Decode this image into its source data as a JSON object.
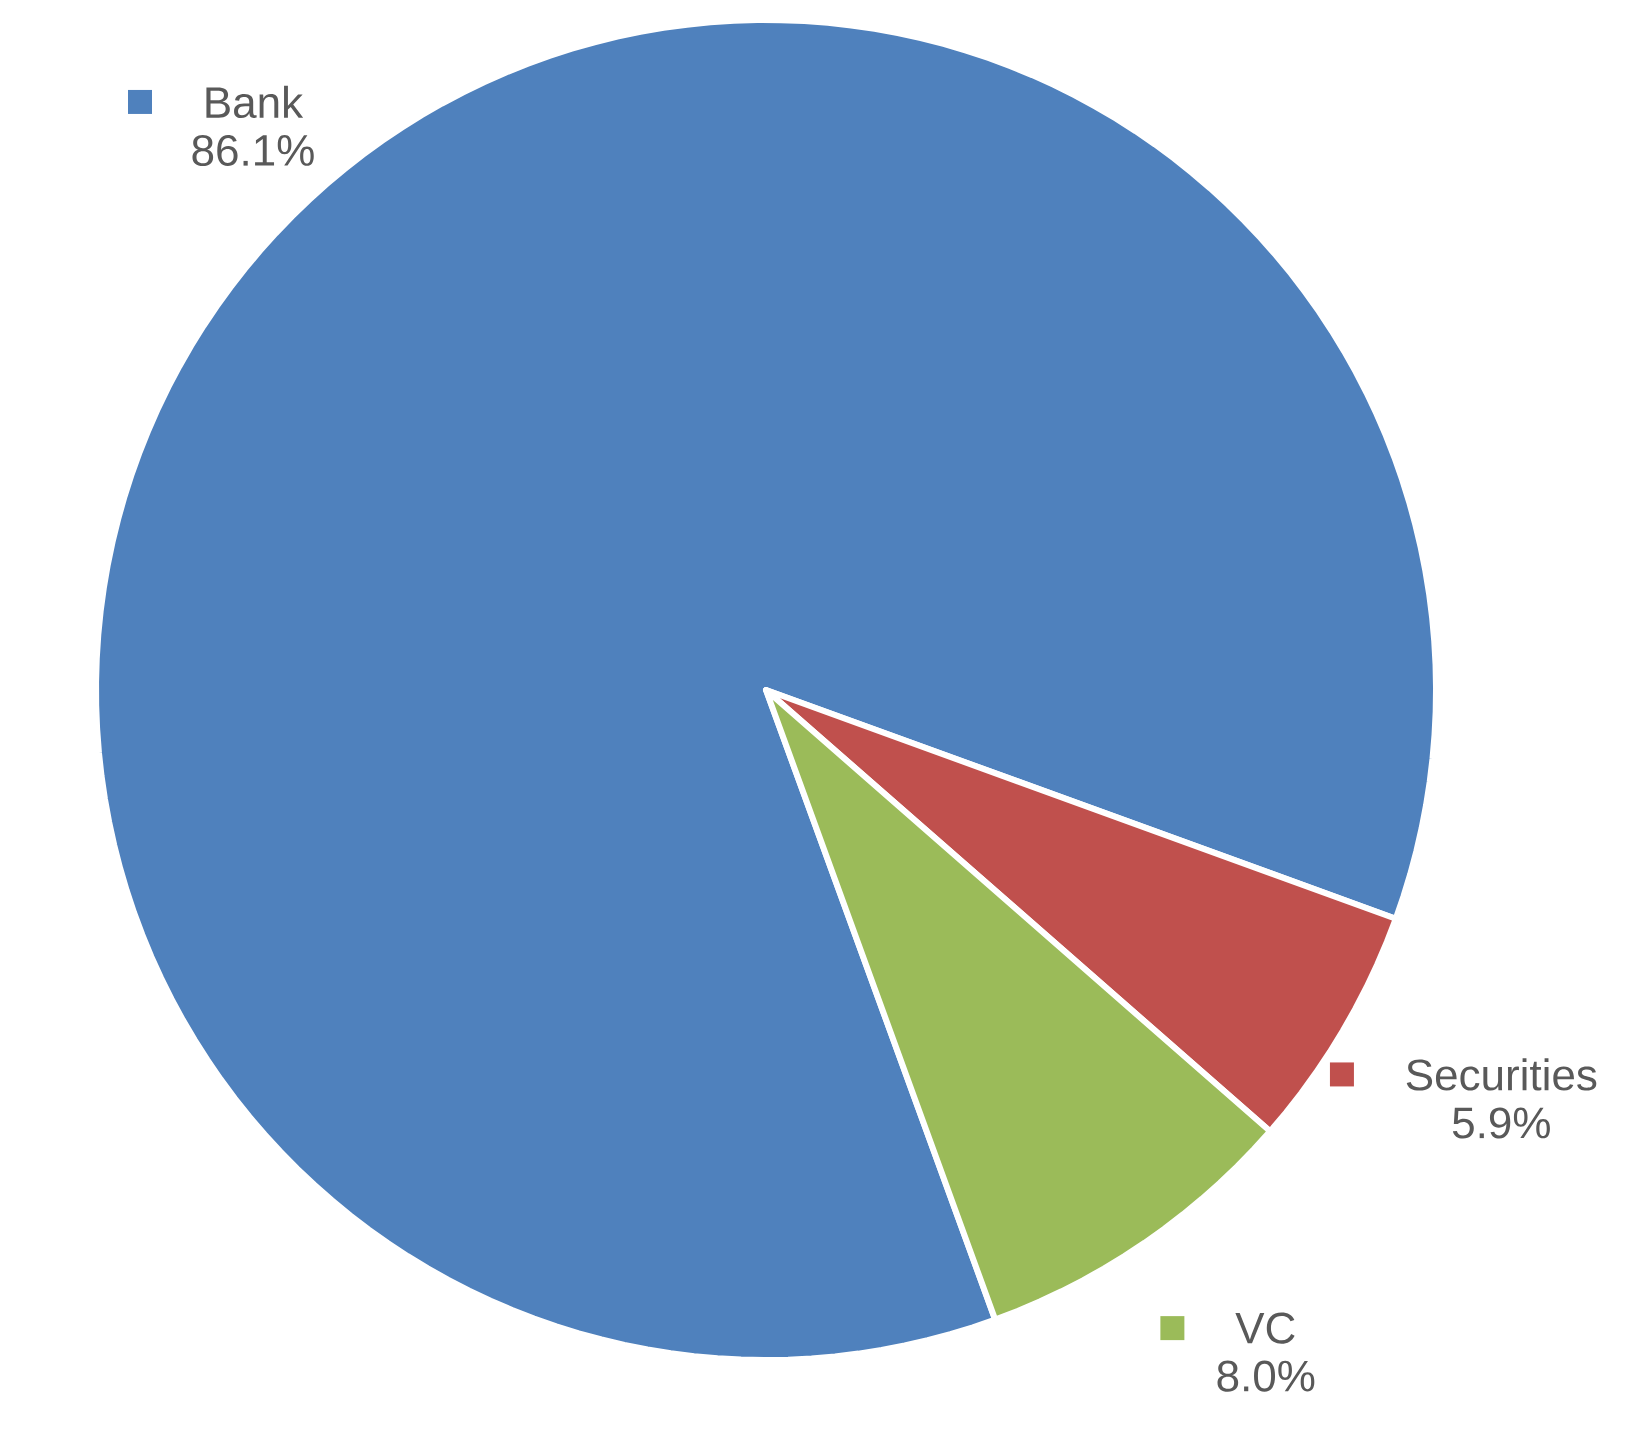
{
  "chart_data": {
    "type": "pie",
    "categories": [
      "Bank",
      "Securities",
      "VC"
    ],
    "values": [
      86.1,
      5.9,
      8.0
    ],
    "colors": [
      "#4f81bd",
      "#c0504d",
      "#9bbb59"
    ],
    "value_labels": [
      "86.1%",
      "5.9%",
      "8.0%"
    ],
    "legend": "right"
  }
}
